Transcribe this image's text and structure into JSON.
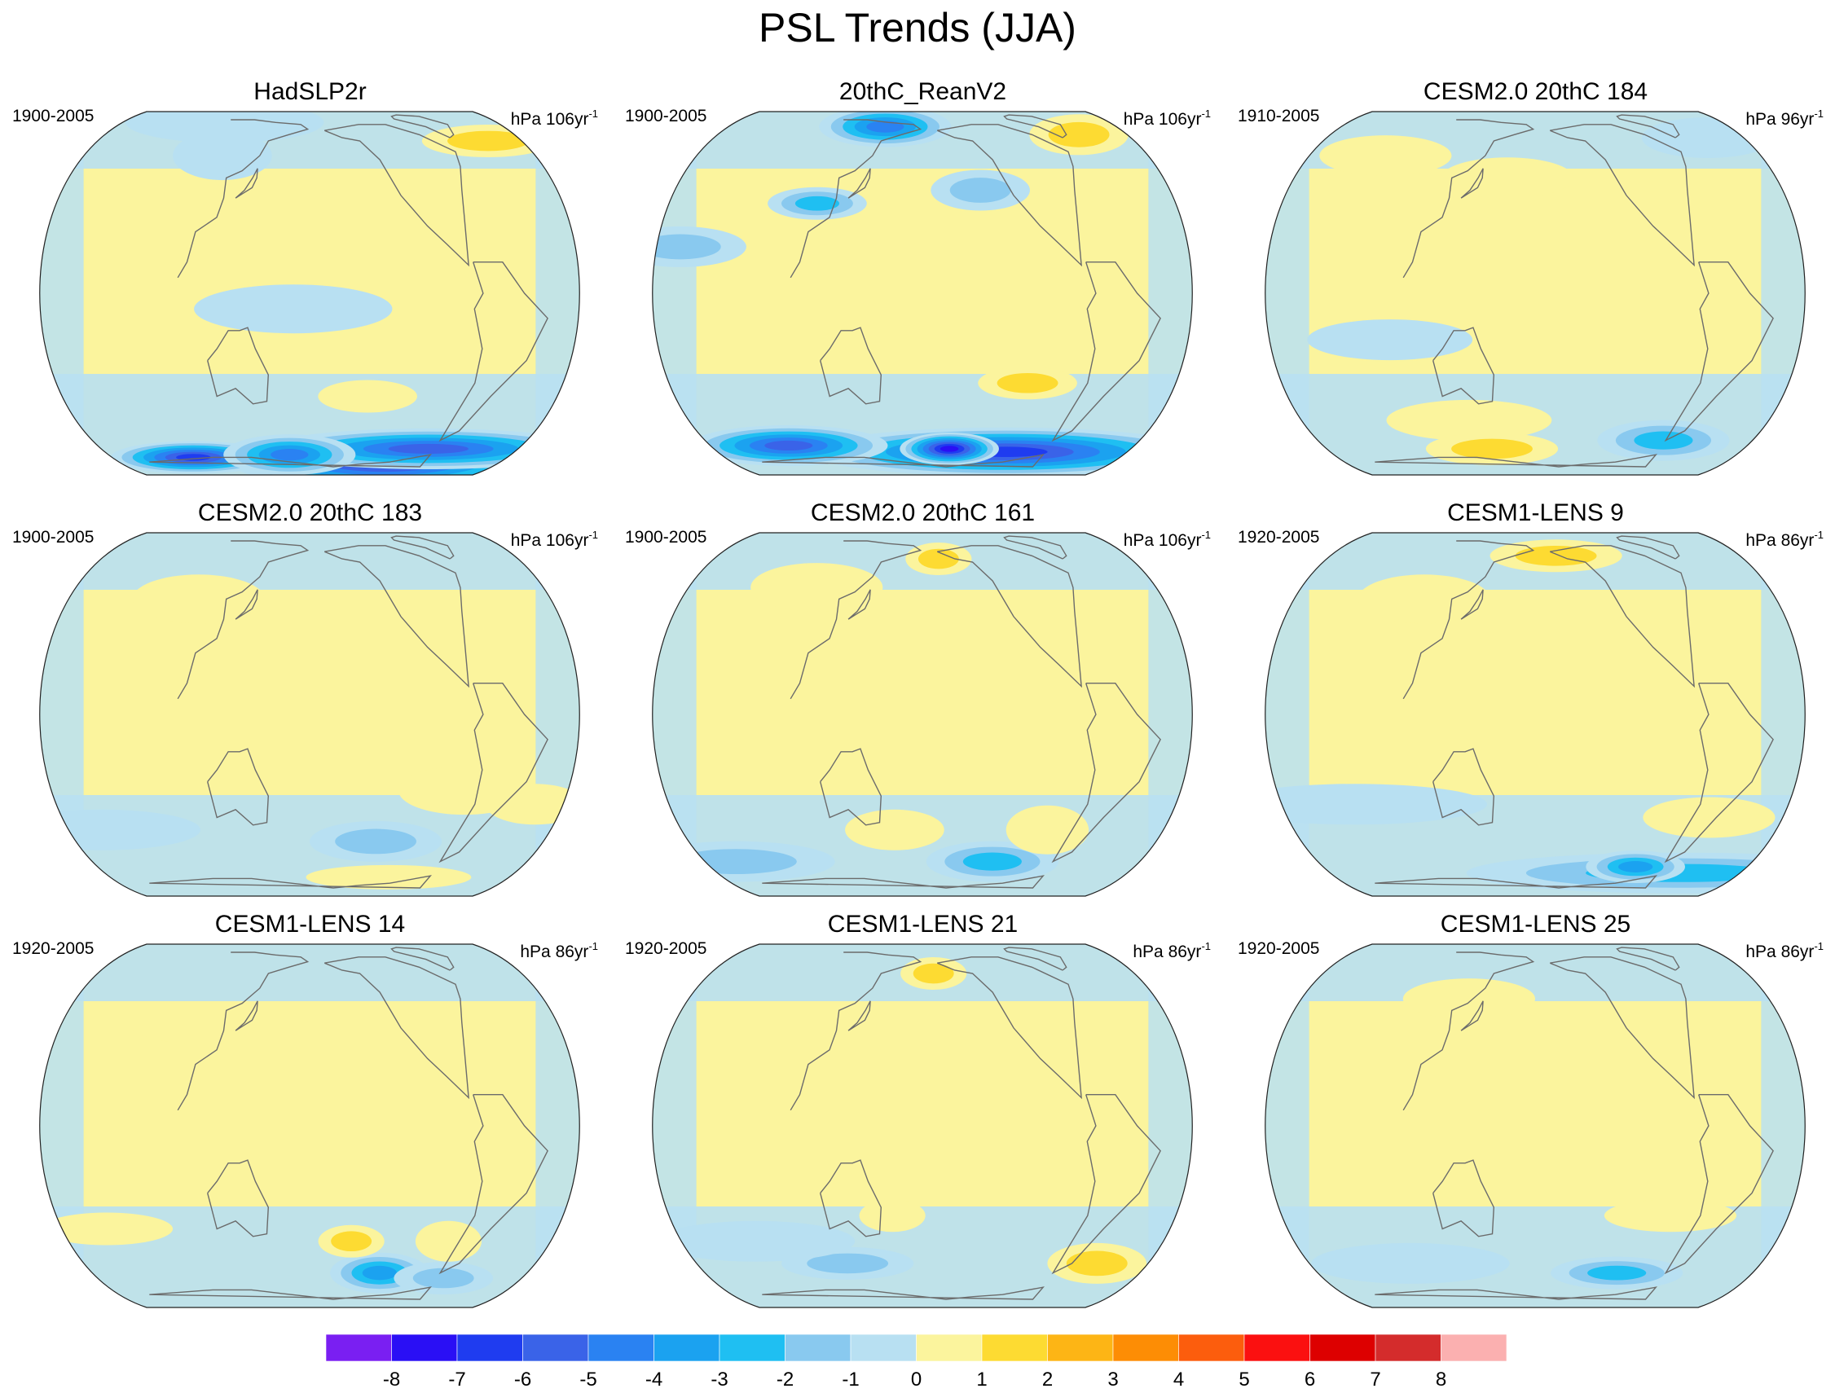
{
  "figure": {
    "title": "PSL Trends (JJA)"
  },
  "panels": [
    {
      "title": "HadSLP2r",
      "period": "1900-2005",
      "units_prefix": "hPa 106yr",
      "units_exponent": "-1",
      "blobs": [
        {
          "lon": -100,
          "lat": -68,
          "rx": 95,
          "ry": 14,
          "level": -8
        },
        {
          "lon": -70,
          "lat": -60,
          "rx": 100,
          "ry": 10,
          "level": -6
        },
        {
          "lon": 60,
          "lat": -66,
          "rx": 50,
          "ry": 8,
          "level": -7
        },
        {
          "lon": 160,
          "lat": -64,
          "rx": 40,
          "ry": 10,
          "level": -5
        },
        {
          "lon": -20,
          "lat": 58,
          "rx": 40,
          "ry": 8,
          "level": 2
        },
        {
          "lon": 110,
          "lat": 50,
          "rx": 30,
          "ry": 12,
          "level": -1
        },
        {
          "lon": 170,
          "lat": -5,
          "rx": 60,
          "ry": 12,
          "level": -1
        },
        {
          "lon": -140,
          "lat": -35,
          "rx": 30,
          "ry": 8,
          "level": 1
        },
        {
          "lon": 80,
          "lat": 72,
          "rx": 60,
          "ry": 10,
          "level": -1
        }
      ]
    },
    {
      "title": "20thC_ReanV2",
      "period": "1900-2005",
      "units_prefix": "hPa 106yr",
      "units_exponent": "-1",
      "blobs": [
        {
          "lon": -100,
          "lat": -62,
          "rx": 120,
          "ry": 12,
          "level": -7
        },
        {
          "lon": -155,
          "lat": -60,
          "rx": 30,
          "ry": 8,
          "level": -8
        },
        {
          "lon": 60,
          "lat": -58,
          "rx": 60,
          "ry": 10,
          "level": -6
        },
        {
          "lon": 140,
          "lat": 68,
          "rx": 40,
          "ry": 10,
          "level": -5
        },
        {
          "lon": 110,
          "lat": 30,
          "rx": 30,
          "ry": 8,
          "level": -3
        },
        {
          "lon": -30,
          "lat": 62,
          "rx": 30,
          "ry": 10,
          "level": 2
        },
        {
          "lon": -110,
          "lat": -30,
          "rx": 30,
          "ry": 8,
          "level": 2
        },
        {
          "lon": -140,
          "lat": 35,
          "rx": 30,
          "ry": 10,
          "level": -2
        },
        {
          "lon": 30,
          "lat": 15,
          "rx": 40,
          "ry": 10,
          "level": -2
        }
      ]
    },
    {
      "title": "CESM2.0 20thC 184",
      "period": "1910-2005",
      "units_prefix": "hPa 96yr",
      "units_exponent": "-1",
      "blobs": [
        {
          "lon": -70,
          "lat": -55,
          "rx": 40,
          "ry": 10,
          "level": -3
        },
        {
          "lon": 130,
          "lat": -45,
          "rx": 50,
          "ry": 10,
          "level": 1
        },
        {
          "lon": 60,
          "lat": 50,
          "rx": 40,
          "ry": 10,
          "level": 1
        },
        {
          "lon": 160,
          "lat": 40,
          "rx": 40,
          "ry": 10,
          "level": 1
        },
        {
          "lon": 140,
          "lat": -60,
          "rx": 40,
          "ry": 8,
          "level": 2
        },
        {
          "lon": -20,
          "lat": 60,
          "rx": 40,
          "ry": 10,
          "level": -1
        },
        {
          "lon": 90,
          "lat": -15,
          "rx": 50,
          "ry": 10,
          "level": -1
        }
      ]
    },
    {
      "title": "CESM2.0 20thC 183",
      "period": "1900-2005",
      "units_prefix": "hPa 106yr",
      "units_exponent": "-1",
      "blobs": [
        {
          "lon": -130,
          "lat": -45,
          "rx": 40,
          "ry": 10,
          "level": -2
        },
        {
          "lon": -30,
          "lat": -30,
          "rx": 30,
          "ry": 10,
          "level": 1
        },
        {
          "lon": 100,
          "lat": 40,
          "rx": 40,
          "ry": 12,
          "level": 1
        },
        {
          "lon": 30,
          "lat": -40,
          "rx": 60,
          "ry": 10,
          "level": -1
        },
        {
          "lon": -80,
          "lat": -25,
          "rx": 40,
          "ry": 12,
          "level": 1
        },
        {
          "lon": -100,
          "lat": -65,
          "rx": 50,
          "ry": 6,
          "level": 1
        }
      ]
    },
    {
      "title": "CESM2.0 20thC 161",
      "period": "1900-2005",
      "units_prefix": "hPa 106yr",
      "units_exponent": "-1",
      "blobs": [
        {
          "lon": -120,
          "lat": -55,
          "rx": 40,
          "ry": 10,
          "level": -3
        },
        {
          "lon": 160,
          "lat": -40,
          "rx": 30,
          "ry": 10,
          "level": 1
        },
        {
          "lon": -90,
          "lat": -40,
          "rx": 25,
          "ry": 12,
          "level": 1
        },
        {
          "lon": 100,
          "lat": 45,
          "rx": 40,
          "ry": 12,
          "level": 1
        },
        {
          "lon": -165,
          "lat": 60,
          "rx": 20,
          "ry": 8,
          "level": 2
        },
        {
          "lon": 20,
          "lat": -55,
          "rx": 60,
          "ry": 10,
          "level": -2
        }
      ]
    },
    {
      "title": "CESM1-LENS 9",
      "period": "1920-2005",
      "units_prefix": "hPa 86yr",
      "units_exponent": "-1",
      "blobs": [
        {
          "lon": -40,
          "lat": -62,
          "rx": 130,
          "ry": 10,
          "level": -3
        },
        {
          "lon": -90,
          "lat": -58,
          "rx": 30,
          "ry": 8,
          "level": -4
        },
        {
          "lon": -160,
          "lat": 62,
          "rx": 40,
          "ry": 8,
          "level": 2
        },
        {
          "lon": 100,
          "lat": 40,
          "rx": 40,
          "ry": 12,
          "level": 1
        },
        {
          "lon": -60,
          "lat": -35,
          "rx": 40,
          "ry": 10,
          "level": 1
        },
        {
          "lon": 60,
          "lat": -30,
          "rx": 80,
          "ry": 10,
          "level": -1
        }
      ]
    },
    {
      "title": "CESM1-LENS 14",
      "period": "1920-2005",
      "units_prefix": "hPa 86yr",
      "units_exponent": "-1",
      "blobs": [
        {
          "lon": -120,
          "lat": -55,
          "rx": 30,
          "ry": 10,
          "level": -4
        },
        {
          "lon": -60,
          "lat": -58,
          "rx": 30,
          "ry": 8,
          "level": -2
        },
        {
          "lon": -150,
          "lat": -40,
          "rx": 20,
          "ry": 8,
          "level": 2
        },
        {
          "lon": -80,
          "lat": -40,
          "rx": 20,
          "ry": 10,
          "level": 1
        },
        {
          "lon": 100,
          "lat": 35,
          "rx": 40,
          "ry": 10,
          "level": 1
        },
        {
          "lon": 40,
          "lat": -35,
          "rx": 40,
          "ry": 8,
          "level": 1
        }
      ]
    },
    {
      "title": "CESM1-LENS 21",
      "period": "1920-2005",
      "units_prefix": "hPa 86yr",
      "units_exponent": "-1",
      "blobs": [
        {
          "lon": -40,
          "lat": -50,
          "rx": 30,
          "ry": 10,
          "level": 2
        },
        {
          "lon": -170,
          "lat": 58,
          "rx": 20,
          "ry": 8,
          "level": 2
        },
        {
          "lon": 120,
          "lat": -50,
          "rx": 40,
          "ry": 8,
          "level": -2
        },
        {
          "lon": 60,
          "lat": -40,
          "rx": 60,
          "ry": 10,
          "level": -1
        },
        {
          "lon": 160,
          "lat": -30,
          "rx": 20,
          "ry": 8,
          "level": 1
        }
      ]
    },
    {
      "title": "CESM1-LENS 25",
      "period": "1920-2005",
      "units_prefix": "hPa 86yr",
      "units_exponent": "-1",
      "blobs": [
        {
          "lon": -110,
          "lat": -55,
          "rx": 40,
          "ry": 8,
          "level": -3
        },
        {
          "lon": -90,
          "lat": -30,
          "rx": 40,
          "ry": 8,
          "level": 1
        },
        {
          "lon": 80,
          "lat": -50,
          "rx": 60,
          "ry": 10,
          "level": -1
        },
        {
          "lon": 130,
          "lat": 45,
          "rx": 40,
          "ry": 10,
          "level": 1
        }
      ]
    }
  ],
  "colorbar": {
    "labels": [
      "-8",
      "-7",
      "-6",
      "-5",
      "-4",
      "-3",
      "-2",
      "-1",
      "0",
      "1",
      "2",
      "3",
      "4",
      "5",
      "6",
      "7",
      "8"
    ],
    "colors": [
      "#7a1ff2",
      "#2a0ff5",
      "#1f3cf0",
      "#3a63e8",
      "#2a82f2",
      "#1ba2f0",
      "#1fbff2",
      "#89c9ef",
      "#b8e0f2",
      "#fbf49d",
      "#fddb32",
      "#fdb515",
      "#fd8d05",
      "#fc5d0d",
      "#fb1010",
      "#dd0000",
      "#d42c2c",
      "#fbb0b0"
    ]
  }
}
